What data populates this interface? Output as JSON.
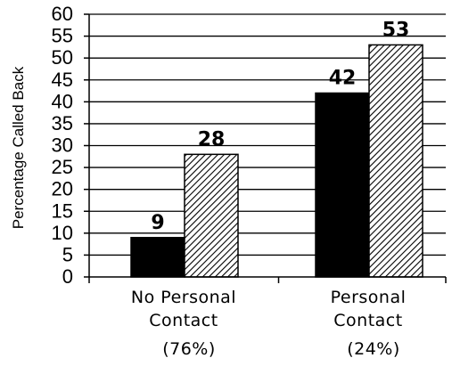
{
  "chart_data": {
    "type": "bar",
    "title": "",
    "xlabel": "",
    "ylabel": "Percentage Called Back",
    "ylim": [
      0,
      60
    ],
    "yticks": [
      0,
      5,
      10,
      15,
      20,
      25,
      30,
      35,
      40,
      45,
      50,
      55,
      60
    ],
    "grid": true,
    "legend": "none",
    "categories": [
      {
        "lines": [
          "No Personal",
          "Contact"
        ],
        "share": "(76%)"
      },
      {
        "lines": [
          "Personal",
          "Contact"
        ],
        "share": "(24%)"
      }
    ],
    "series": [
      {
        "values": [
          9,
          42
        ],
        "fill": "#000000",
        "pattern": "solid"
      },
      {
        "values": [
          28,
          53
        ],
        "fill": "#ffffff",
        "pattern": "diagonal-hatch"
      }
    ]
  }
}
